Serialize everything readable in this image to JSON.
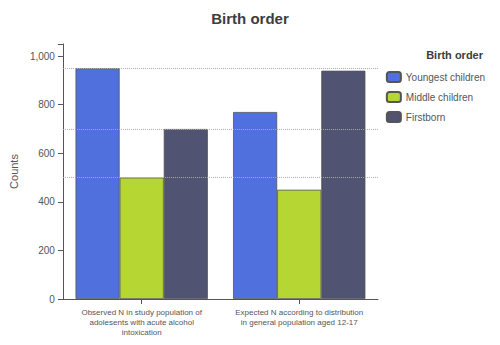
{
  "chart_data": {
    "type": "bar",
    "title": "Birth order",
    "ylabel": "Counts",
    "categories": [
      "Observed N in study population of\nadolesents with acute alcohol\nintoxication",
      "Expected N according to distribution\nin general population aged 12-17"
    ],
    "series": [
      {
        "name": "Youngest children",
        "values": [
          950,
          770
        ]
      },
      {
        "name": "Middle children",
        "values": [
          500,
          450
        ]
      },
      {
        "name": "Firstborn",
        "values": [
          700,
          940
        ]
      }
    ],
    "ylim": [
      0,
      1050
    ],
    "yticks": [
      0,
      200,
      400,
      600,
      800,
      {
        "value": 1000,
        "label": "1,000"
      }
    ],
    "hlines": [
      500,
      700,
      950
    ],
    "grid": false,
    "legend": "right",
    "legend_title": "Birth order"
  }
}
